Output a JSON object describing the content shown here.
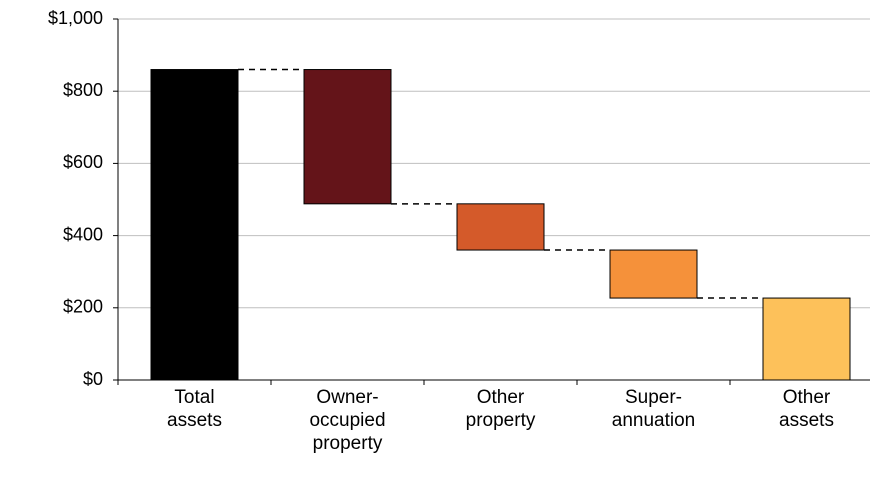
{
  "chart_data": {
    "type": "waterfall",
    "categories": [
      "Total\nassets",
      "Owner-\noccupied\nproperty",
      "Other\nproperty",
      "Super-\nannuation",
      "Other\nassets"
    ],
    "values": [
      860,
      -372,
      -128,
      -133,
      227
    ],
    "colors": [
      "#000000",
      "#641419",
      "#d45a2a",
      "#f5913a",
      "#fdc15a"
    ],
    "ylim": [
      0,
      1000
    ],
    "yticks": [
      {
        "value": 0,
        "label": "$0"
      },
      {
        "value": 200,
        "label": "$200"
      },
      {
        "value": 400,
        "label": "$400"
      },
      {
        "value": 600,
        "label": "$600"
      },
      {
        "value": 800,
        "label": "$800"
      },
      {
        "value": 1000,
        "label": "$1,000"
      }
    ],
    "grid": true
  }
}
